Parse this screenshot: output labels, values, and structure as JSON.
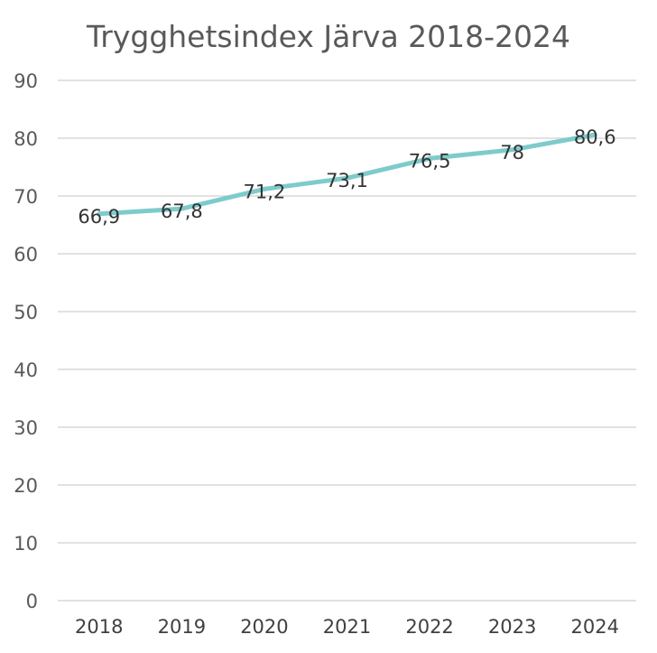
{
  "chart_data": {
    "type": "line",
    "title": "Trygghetsindex Järva 2018-2024",
    "categories": [
      "2018",
      "2019",
      "2020",
      "2021",
      "2022",
      "2023",
      "2024"
    ],
    "series": [
      {
        "values": [
          66.9,
          67.8,
          71.2,
          73.1,
          76.5,
          78,
          80.6
        ],
        "labels": [
          "66,9",
          "67,8",
          "71,2",
          "73,1",
          "76,5",
          "78",
          "80,6"
        ]
      }
    ],
    "ylim": [
      0,
      90
    ],
    "yticks": [
      "0",
      "10",
      "20",
      "30",
      "40",
      "50",
      "60",
      "70",
      "80",
      "90"
    ],
    "grid": true,
    "legend": "none",
    "line_color": "#7ecbcb"
  }
}
